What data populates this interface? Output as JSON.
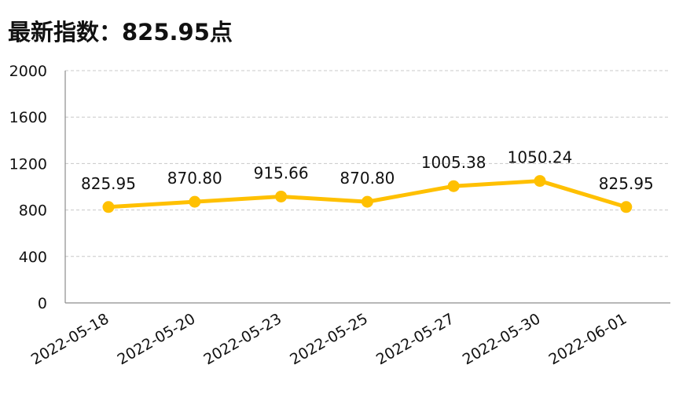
{
  "title": "最新指数：825.95点",
  "chart_data": {
    "type": "line",
    "categories": [
      "2022-05-18",
      "2022-05-20",
      "2022-05-23",
      "2022-05-25",
      "2022-05-27",
      "2022-05-30",
      "2022-06-01"
    ],
    "values": [
      825.95,
      870.8,
      915.66,
      870.8,
      1005.38,
      1050.24,
      825.95
    ],
    "data_labels": [
      "825.95",
      "870.80",
      "915.66",
      "870.80",
      "1005.38",
      "1050.24",
      "825.95"
    ],
    "ylim": [
      0,
      2000
    ],
    "yticks": [
      0,
      400,
      800,
      1200,
      1600,
      2000
    ],
    "ytick_labels": [
      "0",
      "400",
      "800",
      "1200",
      "1600",
      "2000"
    ],
    "grid": true,
    "legend": false,
    "line_color": "#FFC000",
    "grid_color": "#c8c8c8"
  }
}
